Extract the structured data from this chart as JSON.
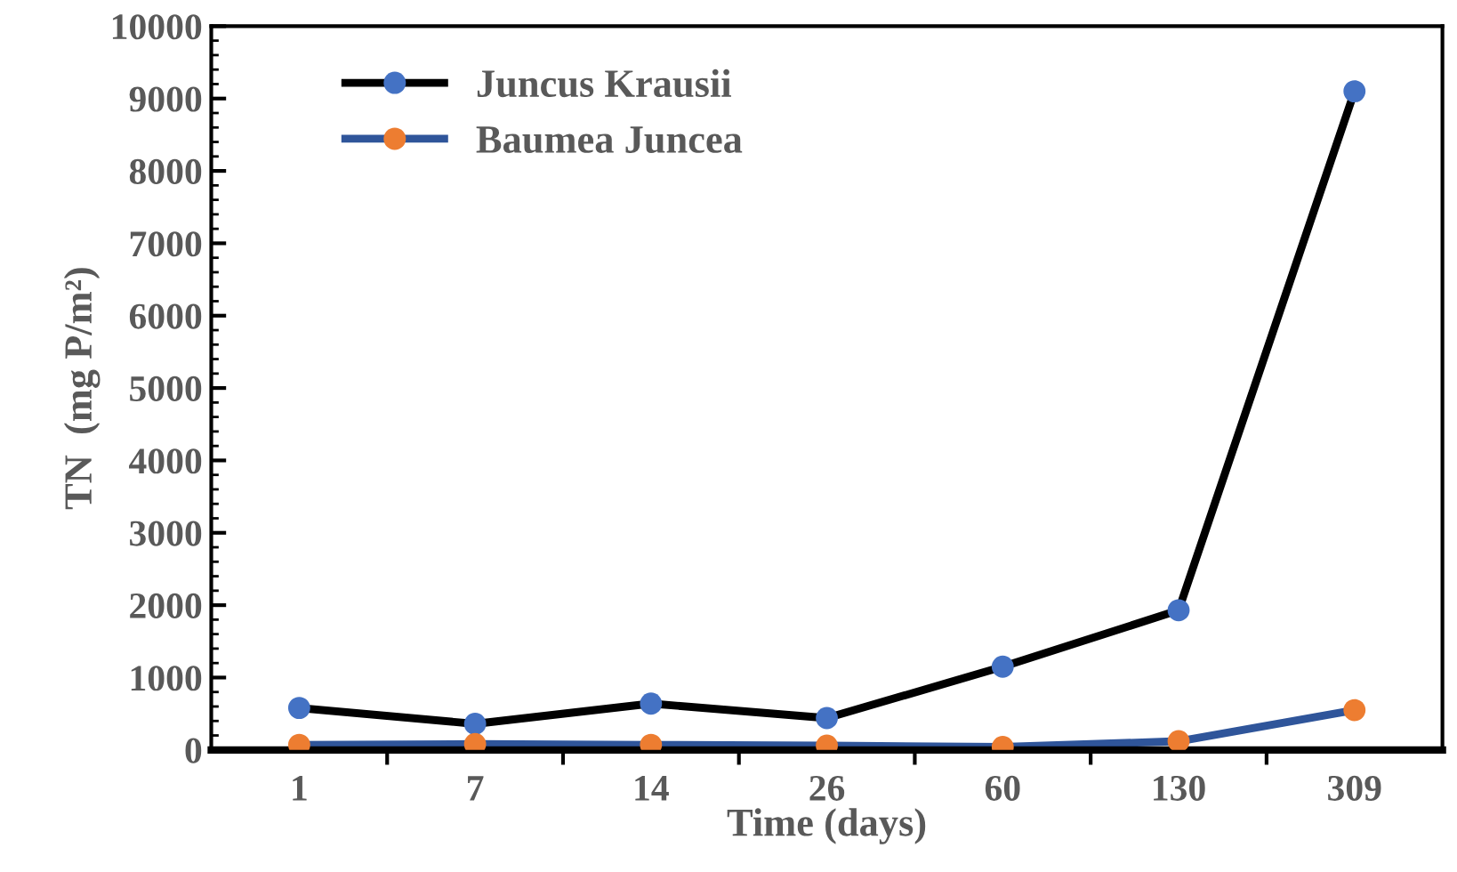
{
  "chart_data": {
    "type": "line",
    "xlabel": "Time (days)",
    "ylabel": "TN  (mg P/m²)",
    "categories": [
      "1",
      "7",
      "14",
      "26",
      "60",
      "130",
      "309"
    ],
    "ylim": [
      0,
      10000
    ],
    "yticks": [
      0,
      1000,
      2000,
      3000,
      4000,
      5000,
      6000,
      7000,
      8000,
      9000,
      10000
    ],
    "grid": false,
    "legend": "top left",
    "marker": "circle",
    "line_style": "solid",
    "series": [
      {
        "name": "Juncus Krausii",
        "color": "#000000",
        "colors": [
          "#4472c4",
          "#4472c4",
          "#4472c4",
          "#4472c4",
          "#4472c4",
          "#4472c4",
          "#4472c4"
        ],
        "values": [
          580,
          360,
          640,
          440,
          1150,
          1930,
          9100
        ]
      },
      {
        "name": "Baumea Juncea",
        "color": "#2f559a",
        "colors": [
          "#ed7d31",
          "#ed7d31",
          "#ed7d31",
          "#ed7d31",
          "#ed7d31",
          "#ed7d31",
          "#ed7d31"
        ],
        "values": [
          70,
          80,
          70,
          60,
          40,
          120,
          550
        ]
      }
    ]
  }
}
